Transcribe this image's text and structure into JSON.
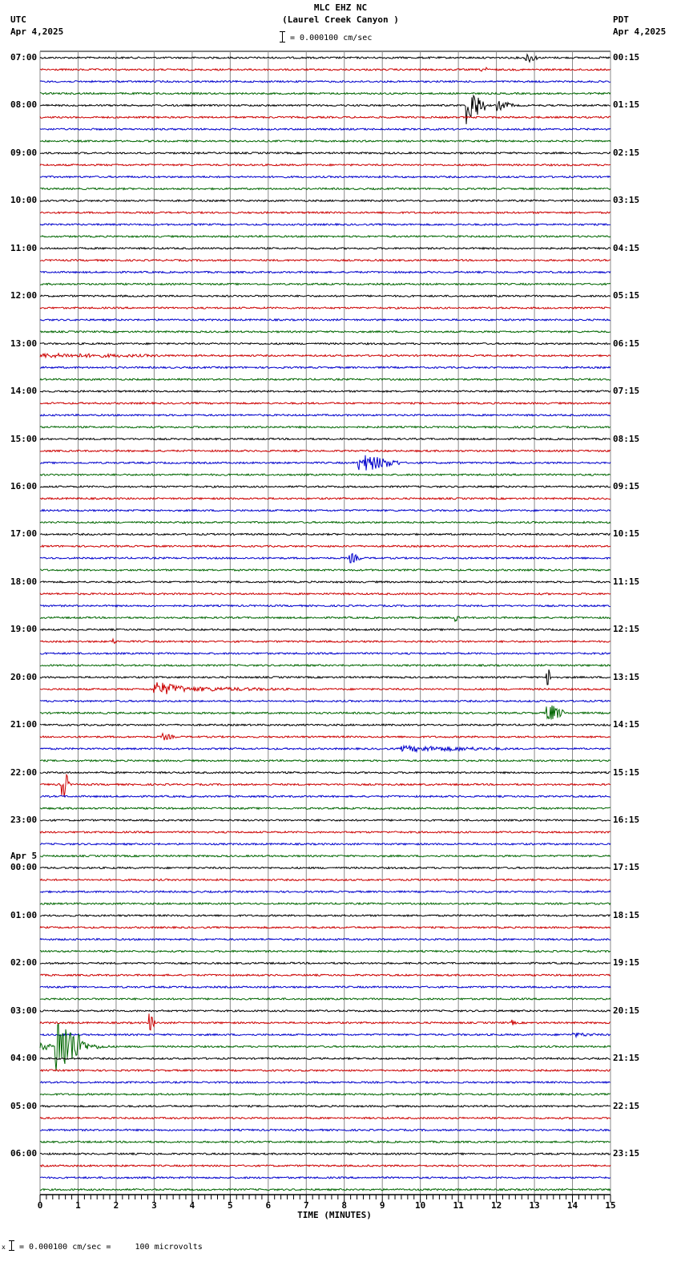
{
  "header": {
    "station": "MLC EHZ NC",
    "location": "(Laurel Creek Canyon )",
    "scale": "= 0.000100 cm/sec",
    "left_tz": "UTC",
    "left_date": "Apr 4,2025",
    "right_tz": "PDT",
    "right_date": "Apr 4,2025"
  },
  "footer": {
    "scale_note": "= 0.000100 cm/sec =     100 microvolts",
    "marker": "x"
  },
  "chart_data": {
    "type": "line",
    "title": "MLC EHZ NC (Laurel Creek Canyon )",
    "xlabel": "TIME (MINUTES)",
    "ylabel": "",
    "xlim": [
      0,
      15
    ],
    "x_ticks": [
      "0",
      "1",
      "2",
      "3",
      "4",
      "5",
      "6",
      "7",
      "8",
      "9",
      "10",
      "11",
      "12",
      "13",
      "14",
      "15"
    ],
    "grid": true,
    "traces_per_hour": 4,
    "trace_colors": [
      "#000000",
      "#cc0000",
      "#0000cc",
      "#006600"
    ],
    "left_labels": [
      {
        "row": 0,
        "text": "07:00"
      },
      {
        "row": 4,
        "text": "08:00"
      },
      {
        "row": 8,
        "text": "09:00"
      },
      {
        "row": 12,
        "text": "10:00"
      },
      {
        "row": 16,
        "text": "11:00"
      },
      {
        "row": 20,
        "text": "12:00"
      },
      {
        "row": 24,
        "text": "13:00"
      },
      {
        "row": 28,
        "text": "14:00"
      },
      {
        "row": 32,
        "text": "15:00"
      },
      {
        "row": 36,
        "text": "16:00"
      },
      {
        "row": 40,
        "text": "17:00"
      },
      {
        "row": 44,
        "text": "18:00"
      },
      {
        "row": 48,
        "text": "19:00"
      },
      {
        "row": 52,
        "text": "20:00"
      },
      {
        "row": 56,
        "text": "21:00"
      },
      {
        "row": 60,
        "text": "22:00"
      },
      {
        "row": 64,
        "text": "23:00"
      },
      {
        "row": 67,
        "text": "Apr 5"
      },
      {
        "row": 68,
        "text": "00:00"
      },
      {
        "row": 72,
        "text": "01:00"
      },
      {
        "row": 76,
        "text": "02:00"
      },
      {
        "row": 80,
        "text": "03:00"
      },
      {
        "row": 84,
        "text": "04:00"
      },
      {
        "row": 88,
        "text": "05:00"
      },
      {
        "row": 92,
        "text": "06:00"
      }
    ],
    "right_labels": [
      "00:15",
      "01:15",
      "02:15",
      "03:15",
      "04:15",
      "05:15",
      "06:15",
      "07:15",
      "08:15",
      "09:15",
      "10:15",
      "11:15",
      "12:15",
      "13:15",
      "14:15",
      "15:15",
      "16:15",
      "17:15",
      "18:15",
      "19:15",
      "20:15",
      "21:15",
      "22:15",
      "23:15"
    ],
    "events": [
      {
        "row": 0,
        "start": 12.75,
        "end": 13.1,
        "amp": 8
      },
      {
        "row": 1,
        "start": 11.6,
        "end": 11.8,
        "amp": 6
      },
      {
        "row": 4,
        "start": 11.2,
        "end": 11.7,
        "amp": 26
      },
      {
        "row": 4,
        "start": 12.0,
        "end": 12.5,
        "amp": 7
      },
      {
        "row": 25,
        "start": 0.0,
        "end": 4.8,
        "amp": 3
      },
      {
        "row": 34,
        "start": 8.35,
        "end": 9.5,
        "amp": 12
      },
      {
        "row": 42,
        "start": 8.1,
        "end": 8.45,
        "amp": 8
      },
      {
        "row": 47,
        "start": 10.9,
        "end": 11.05,
        "amp": 5
      },
      {
        "row": 49,
        "start": 1.9,
        "end": 2.1,
        "amp": 4
      },
      {
        "row": 53,
        "start": 2.95,
        "end": 4.0,
        "amp": 10
      },
      {
        "row": 53,
        "start": 4.0,
        "end": 7.5,
        "amp": 3
      },
      {
        "row": 52,
        "start": 13.3,
        "end": 13.45,
        "amp": 20
      },
      {
        "row": 55,
        "start": 13.3,
        "end": 13.8,
        "amp": 14
      },
      {
        "row": 57,
        "start": 3.2,
        "end": 3.6,
        "amp": 5
      },
      {
        "row": 58,
        "start": 9.5,
        "end": 12.8,
        "amp": 4
      },
      {
        "row": 61,
        "start": 0.55,
        "end": 0.8,
        "amp": 24
      },
      {
        "row": 81,
        "start": 2.85,
        "end": 3.05,
        "amp": 14
      },
      {
        "row": 81,
        "start": 12.4,
        "end": 12.55,
        "amp": 4
      },
      {
        "row": 82,
        "start": 14.0,
        "end": 15.0,
        "amp": 3
      },
      {
        "row": 83,
        "start": 0.0,
        "end": 0.4,
        "amp": 6
      },
      {
        "row": 83,
        "start": 0.4,
        "end": 1.2,
        "amp": 42
      },
      {
        "row": 83,
        "start": 1.2,
        "end": 2.0,
        "amp": 4
      }
    ]
  }
}
